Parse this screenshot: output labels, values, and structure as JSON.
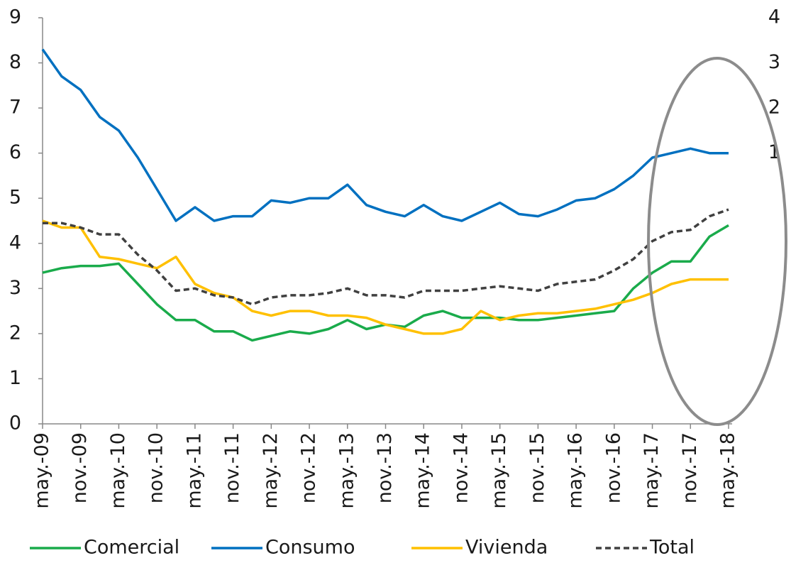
{
  "chart_data": {
    "type": "line",
    "categories": [
      "may.-09",
      null,
      "nov.-09",
      null,
      "may.-10",
      null,
      "nov.-10",
      null,
      "may.-11",
      null,
      "nov.-11",
      null,
      "may.-12",
      null,
      "nov.-12",
      null,
      "may.-13",
      null,
      "nov.-13",
      null,
      "may.-14",
      null,
      "nov.-14",
      null,
      "may.-15",
      null,
      "nov.-15",
      null,
      "may.-16",
      null,
      "nov.-16",
      null,
      "may.-17",
      null,
      "nov.-17",
      null,
      "may.-18"
    ],
    "series": [
      {
        "name": "Comercial",
        "color": "#1aab4b",
        "dash": false,
        "values": [
          3.35,
          3.45,
          3.5,
          3.5,
          3.55,
          3.1,
          2.65,
          2.3,
          2.3,
          2.05,
          2.05,
          1.85,
          1.95,
          2.05,
          2.0,
          2.1,
          2.3,
          2.1,
          2.2,
          2.15,
          2.4,
          2.5,
          2.35,
          2.35,
          2.35,
          2.3,
          2.3,
          2.35,
          2.4,
          2.45,
          2.5,
          3.0,
          3.35,
          3.6,
          3.6,
          4.15,
          4.4
        ]
      },
      {
        "name": "Consumo",
        "color": "#0070c0",
        "dash": false,
        "values": [
          8.3,
          7.7,
          7.4,
          6.8,
          6.5,
          5.9,
          5.2,
          4.5,
          4.8,
          4.5,
          4.6,
          4.6,
          4.95,
          4.9,
          5.0,
          5.0,
          5.3,
          4.85,
          4.7,
          4.6,
          4.85,
          4.6,
          4.5,
          4.7,
          4.9,
          4.65,
          4.6,
          4.75,
          4.95,
          5.0,
          5.2,
          5.5,
          5.9,
          6.0,
          6.1,
          6.0,
          6.0
        ]
      },
      {
        "name": "Vivienda",
        "color": "#ffc000",
        "dash": false,
        "values": [
          4.5,
          4.35,
          4.35,
          3.7,
          3.65,
          3.55,
          3.45,
          3.7,
          3.1,
          2.9,
          2.8,
          2.5,
          2.4,
          2.5,
          2.5,
          2.4,
          2.4,
          2.35,
          2.2,
          2.1,
          2.0,
          2.0,
          2.1,
          2.5,
          2.3,
          2.4,
          2.45,
          2.45,
          2.5,
          2.55,
          2.65,
          2.75,
          2.9,
          3.1,
          3.2,
          3.2,
          3.2
        ]
      },
      {
        "name": "Total",
        "color": "#404040",
        "dash": true,
        "values": [
          4.45,
          4.45,
          4.35,
          4.2,
          4.2,
          3.75,
          3.4,
          2.95,
          3.0,
          2.85,
          2.8,
          2.65,
          2.8,
          2.85,
          2.85,
          2.9,
          3.0,
          2.85,
          2.85,
          2.8,
          2.95,
          2.95,
          2.95,
          3.0,
          3.05,
          3.0,
          2.95,
          3.1,
          3.15,
          3.2,
          3.4,
          3.65,
          4.05,
          4.25,
          4.3,
          4.6,
          4.75
        ]
      }
    ],
    "ylim": [
      0,
      9
    ],
    "yticks": [
      0,
      1,
      2,
      3,
      4,
      5,
      6,
      7,
      8,
      9
    ],
    "y2lim": [
      -5,
      4
    ],
    "y2ticks": [
      1,
      2,
      3,
      4
    ],
    "grid": false,
    "legend": "bottom"
  }
}
